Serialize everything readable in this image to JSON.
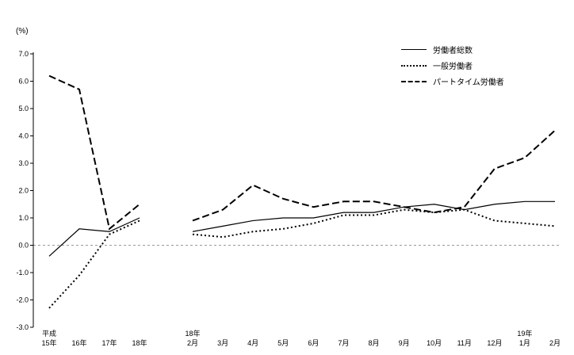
{
  "chart_data": {
    "type": "line",
    "title": "",
    "unit_label": "(%)",
    "ylim": [
      -3.0,
      7.0
    ],
    "yticks": [
      7.0,
      6.0,
      5.0,
      4.0,
      3.0,
      2.0,
      1.0,
      0.0,
      -1.0,
      -2.0,
      -3.0
    ],
    "grid": "zero-line-only",
    "legend_position": "top-right",
    "annual_categories": [
      [
        "平成",
        "15年"
      ],
      "16年",
      "17年",
      "18年"
    ],
    "monthly_categories": [
      [
        "18年",
        "2月"
      ],
      "3月",
      "4月",
      "5月",
      "6月",
      "7月",
      "8月",
      "9月",
      "10月",
      "11月",
      "12月",
      [
        "19年",
        "1月"
      ],
      "2月"
    ],
    "series": [
      {
        "name": "労働者総数",
        "style": "solid",
        "annual": [
          -0.4,
          0.6,
          0.5,
          1.0
        ],
        "monthly": [
          0.5,
          0.7,
          0.9,
          1.0,
          1.0,
          1.2,
          1.2,
          1.4,
          1.5,
          1.3,
          1.5,
          1.6,
          1.6
        ]
      },
      {
        "name": "一般労働者",
        "style": "dotted",
        "annual": [
          -2.3,
          -1.1,
          0.4,
          0.9
        ],
        "monthly": [
          0.4,
          0.3,
          0.5,
          0.6,
          0.8,
          1.1,
          1.1,
          1.3,
          1.2,
          1.3,
          0.9,
          0.8,
          0.7
        ]
      },
      {
        "name": "パートタイム労働者",
        "style": "dashed",
        "annual": [
          6.2,
          5.7,
          0.6,
          1.5
        ],
        "monthly": [
          0.9,
          1.3,
          2.2,
          1.7,
          1.4,
          1.6,
          1.6,
          1.4,
          1.2,
          1.4,
          2.8,
          3.2,
          4.2
        ]
      }
    ],
    "colors": {
      "line": "#000000",
      "zero_line": "#999999",
      "axis": "#000000"
    }
  }
}
